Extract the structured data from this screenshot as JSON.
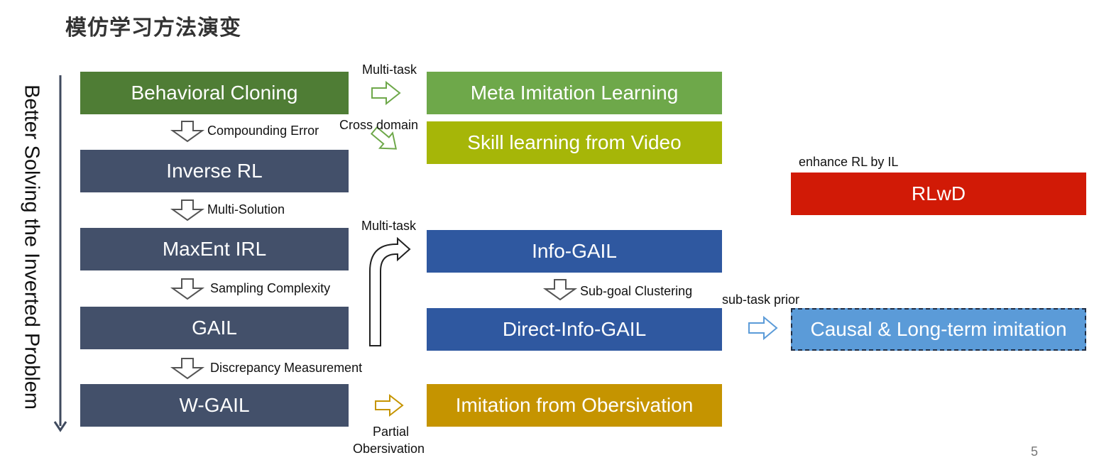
{
  "title": "模仿学习方法演变",
  "side_label": "Better Solving the Inverted Problem",
  "left_column": [
    "Behavioral Cloning",
    "Inverse RL",
    "MaxEnt IRL",
    "GAIL",
    "W-GAIL"
  ],
  "left_transitions": [
    "Compounding Error",
    "Multi-Solution",
    "Sampling Complexity",
    "Discrepancy Measurement"
  ],
  "middle_column": [
    "Meta Imitation Learning",
    "Skill learning from Video",
    "Info-GAIL",
    "Direct-Info-GAIL",
    "Imitation from Obersivation"
  ],
  "middle_transition": "Sub-goal Clustering",
  "arrow_labels": {
    "multi_task_top": "Multi-task",
    "cross_domain": "Cross domain",
    "multi_task_mid": "Multi-task",
    "partial_line1": "Partial",
    "partial_line2": "Obersivation",
    "sub_task_prior": "sub-task prior",
    "enhance": "enhance RL by IL"
  },
  "right_column": {
    "rlwd": "RLwD",
    "causal": "Causal & Long-term imitation"
  },
  "colors": {
    "bc_green": "#4f7d35",
    "slate": "#43506a",
    "meta_green": "#6ea84a",
    "skill_olive": "#a6b608",
    "blue": "#2f58a0",
    "gold": "#c59400",
    "red": "#d11a06",
    "light_blue": "#5b9bd8"
  },
  "page_number": "5"
}
